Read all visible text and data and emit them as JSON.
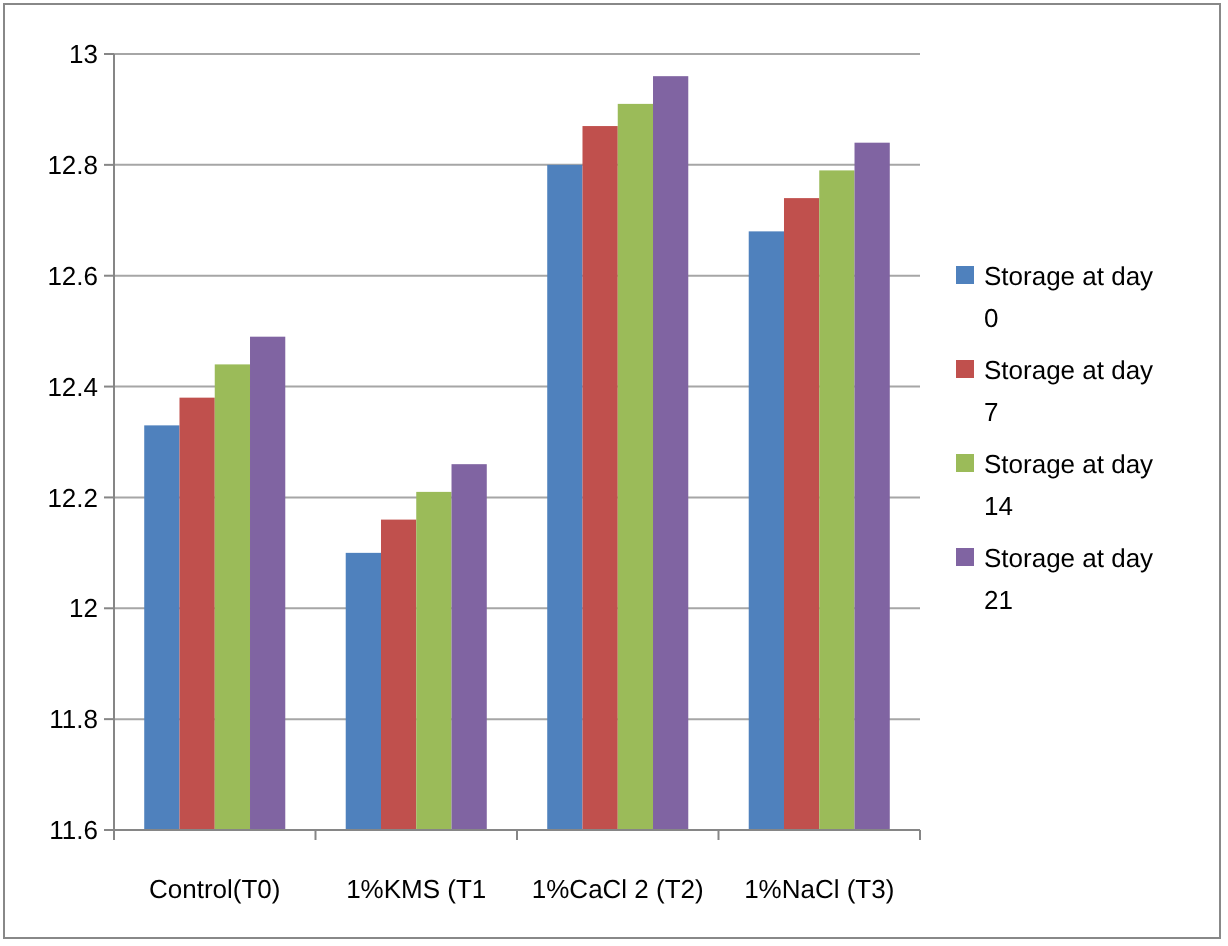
{
  "chart_data": {
    "type": "bar",
    "categories": [
      "Control(T0)",
      "1%KMS (T1",
      "1%CaCl 2 (T2)",
      "1%NaCl (T3)"
    ],
    "series": [
      {
        "name": "Storage at day 0",
        "color": "#4f81bd",
        "values": [
          12.33,
          12.1,
          12.8,
          12.68
        ]
      },
      {
        "name": "Storage at day 7",
        "color": "#c0504d",
        "values": [
          12.38,
          12.16,
          12.87,
          12.74
        ]
      },
      {
        "name": "Storage at day 14",
        "color": "#9bbb59",
        "values": [
          12.44,
          12.21,
          12.91,
          12.79
        ]
      },
      {
        "name": "Storage at day 21",
        "color": "#8064a2",
        "values": [
          12.49,
          12.26,
          12.96,
          12.84
        ]
      }
    ],
    "ylim": [
      11.6,
      13
    ],
    "yticks": [
      11.6,
      11.8,
      12,
      12.2,
      12.4,
      12.6,
      12.8,
      13
    ],
    "grid": "y",
    "legend": "right"
  }
}
